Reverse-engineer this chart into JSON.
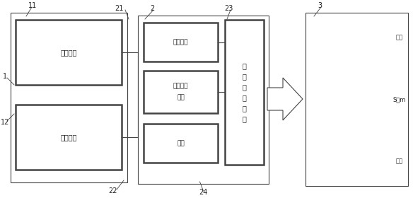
{
  "fig_width": 5.84,
  "fig_height": 2.8,
  "dpi": 100,
  "bg_color": "#ffffff",
  "line_color": "#444444",
  "label_1": "1",
  "label_11": "11",
  "label_12": "12",
  "label_21": "21",
  "label_22": "22",
  "label_2": "2",
  "label_23": "23",
  "label_24": "24",
  "label_3": "3",
  "coil_text": "地感线圈",
  "detect_text": "检测电路",
  "signal_detect_line1": "信号检测",
  "signal_detect_line2": "电路",
  "power_text": "电源",
  "sp1": "信",
  "sp2": "号",
  "sp3": "处",
  "sp4": "理",
  "sp5": "电",
  "sp6": "路",
  "right_top": "路面",
  "right_mid": "S导m",
  "right_bot": "路面"
}
